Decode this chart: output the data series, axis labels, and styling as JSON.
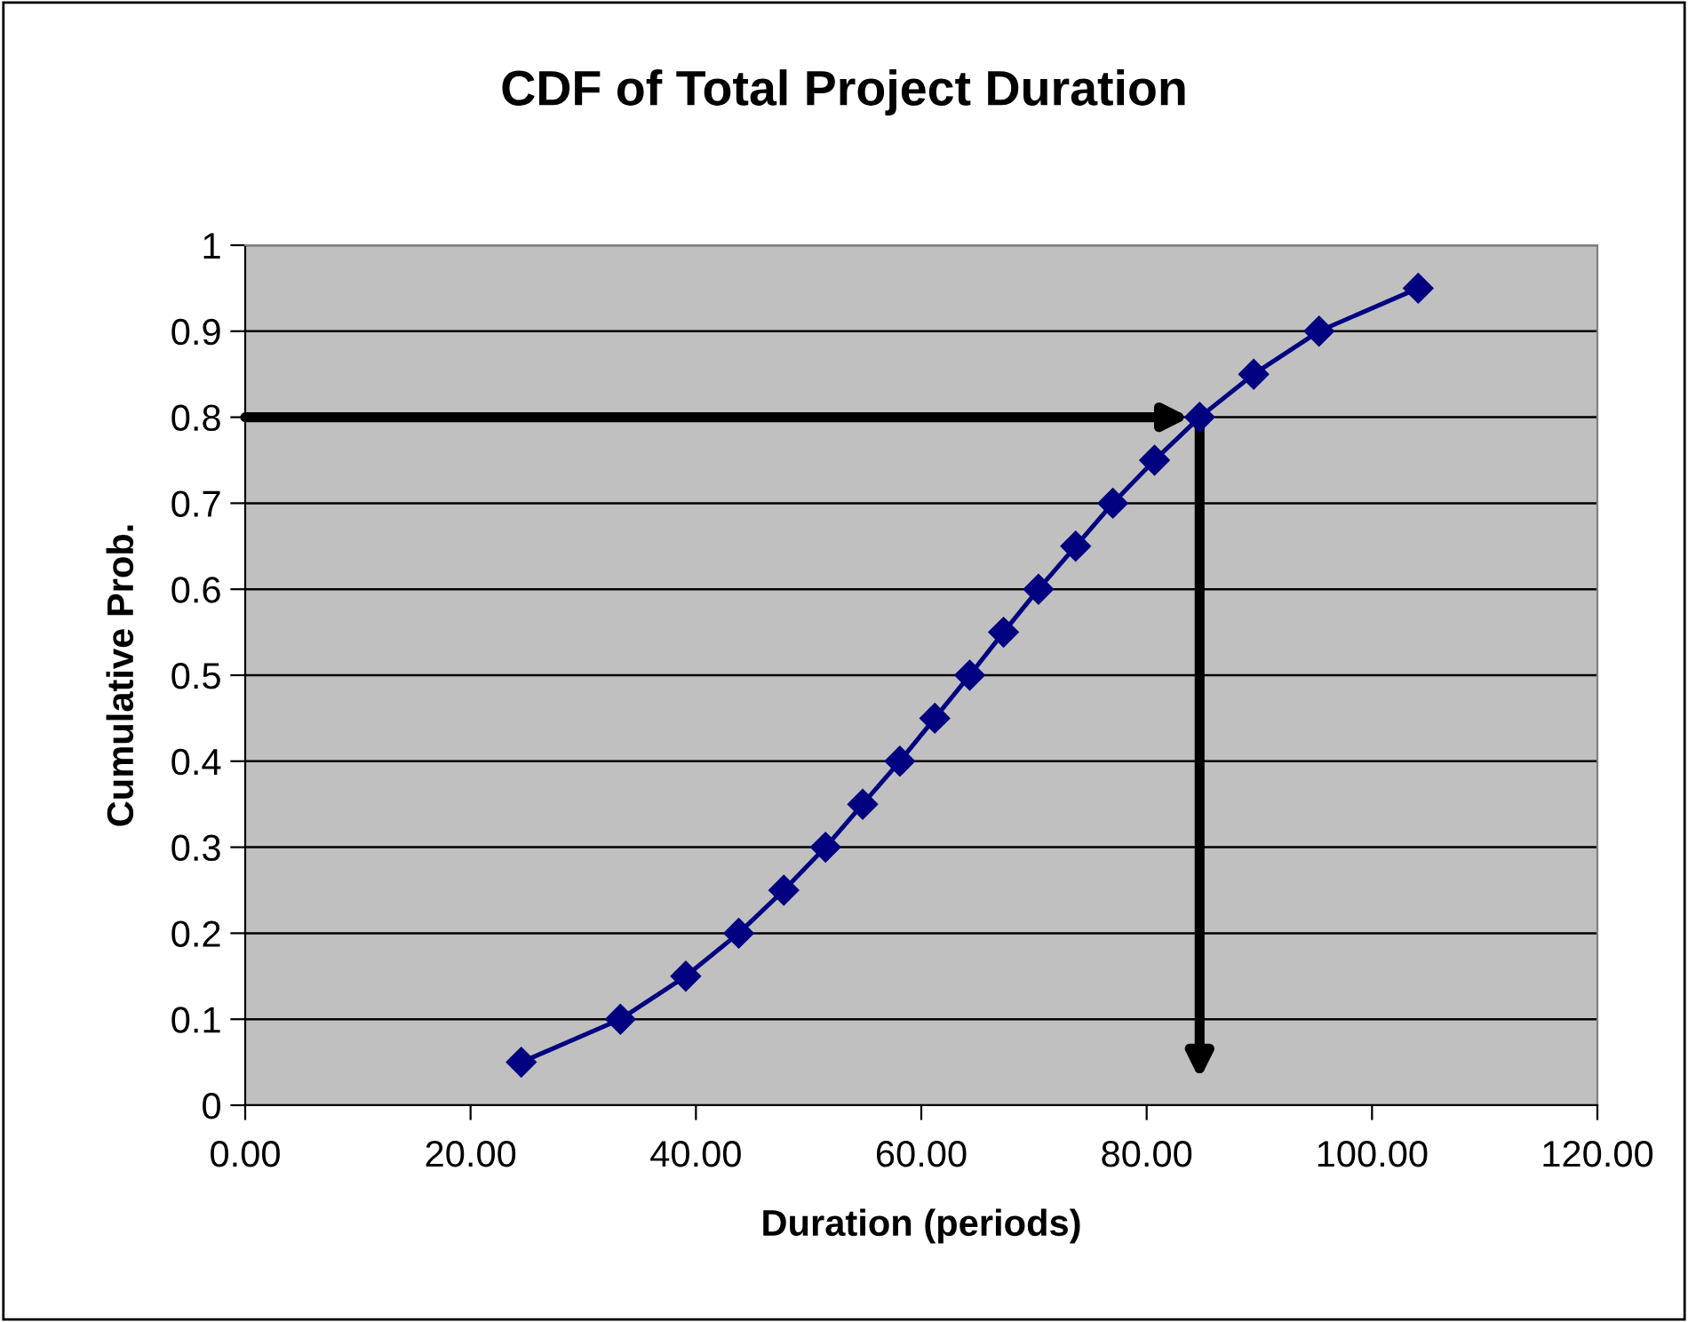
{
  "chart_data": {
    "type": "line",
    "title": "CDF of Total Project Duration",
    "xlabel": "Duration (periods)",
    "ylabel": "Cumulative Prob.",
    "x": [
      24.5,
      33.3,
      39.1,
      43.8,
      47.8,
      51.5,
      54.8,
      58.1,
      61.2,
      64.3,
      67.3,
      70.4,
      73.7,
      77.0,
      80.7,
      84.7,
      89.5,
      95.3,
      104.1
    ],
    "series": [
      {
        "color": "#000080",
        "values": [
          0.05,
          0.1,
          0.15,
          0.2,
          0.25,
          0.3,
          0.35,
          0.4,
          0.45,
          0.5,
          0.55,
          0.6,
          0.65,
          0.7,
          0.75,
          0.8,
          0.85,
          0.9,
          0.95
        ]
      }
    ],
    "xlim": [
      0,
      120
    ],
    "xticks": [
      {
        "value": 0,
        "label": "0.00"
      },
      {
        "value": 20,
        "label": "20.00"
      },
      {
        "value": 40,
        "label": "40.00"
      },
      {
        "value": 60,
        "label": "60.00"
      },
      {
        "value": 80,
        "label": "80.00"
      },
      {
        "value": 100,
        "label": "100.00"
      },
      {
        "value": 120,
        "label": "120.00"
      }
    ],
    "ylim": [
      0,
      1
    ],
    "yticks": [
      0,
      0.1,
      0.2,
      0.3,
      0.4,
      0.5,
      0.6,
      0.7,
      0.8,
      0.9,
      1
    ],
    "grid": "y",
    "legend": false,
    "marker": "diamond",
    "line_style": "solid"
  }
}
